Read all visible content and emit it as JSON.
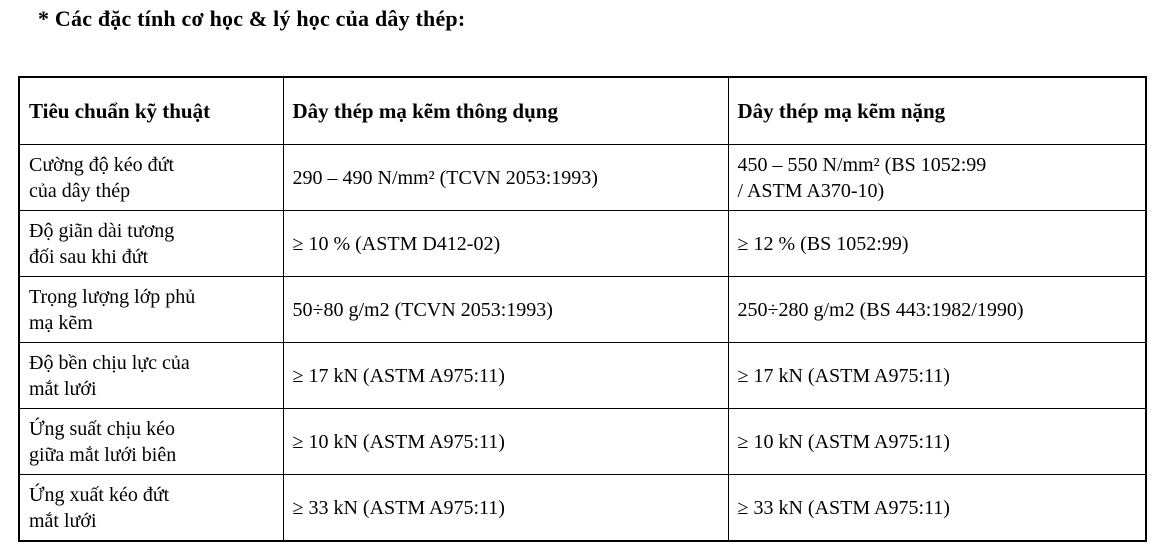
{
  "title": "* Các đặc tính cơ học & lý học của dây thép:",
  "colors": {
    "text": "#000000",
    "border": "#000000",
    "background": "#ffffff"
  },
  "table": {
    "columns": [
      "Tiêu chuẩn kỹ thuật",
      "Dây thép mạ kẽm thông dụng",
      "Dây thép mạ kẽm nặng"
    ],
    "rows": [
      {
        "label": "Cường độ kéo đứt\ncủa dây thép",
        "common": "290 – 490 N/mm² (TCVN 2053:1993)",
        "heavy": "450 – 550 N/mm² (BS 1052:99\n/ ASTM A370-10)"
      },
      {
        "label": "Độ giãn dài tương\nđối sau khi đứt",
        "common": "≥ 10 % (ASTM D412-02)",
        "heavy": "≥ 12 % (BS 1052:99)"
      },
      {
        "label": "Trọng lượng lớp phủ\nmạ kẽm",
        "common": "50÷80 g/m2 (TCVN 2053:1993)",
        "heavy": "250÷280 g/m2 (BS 443:1982/1990)"
      },
      {
        "label": "Độ bền chịu lực của\nmắt lưới",
        "common": "≥ 17 kN (ASTM A975:11)",
        "heavy": "≥ 17 kN (ASTM A975:11)"
      },
      {
        "label": "Ứng suất chịu kéo\ngiữa mắt lưới biên",
        "common": "≥ 10 kN (ASTM A975:11)",
        "heavy": "≥ 10 kN (ASTM A975:11)"
      },
      {
        "label": "Ứng xuất kéo đứt\nmắt lưới",
        "common": "≥ 33 kN (ASTM A975:11)",
        "heavy": "≥ 33 kN (ASTM A975:11)"
      }
    ]
  }
}
